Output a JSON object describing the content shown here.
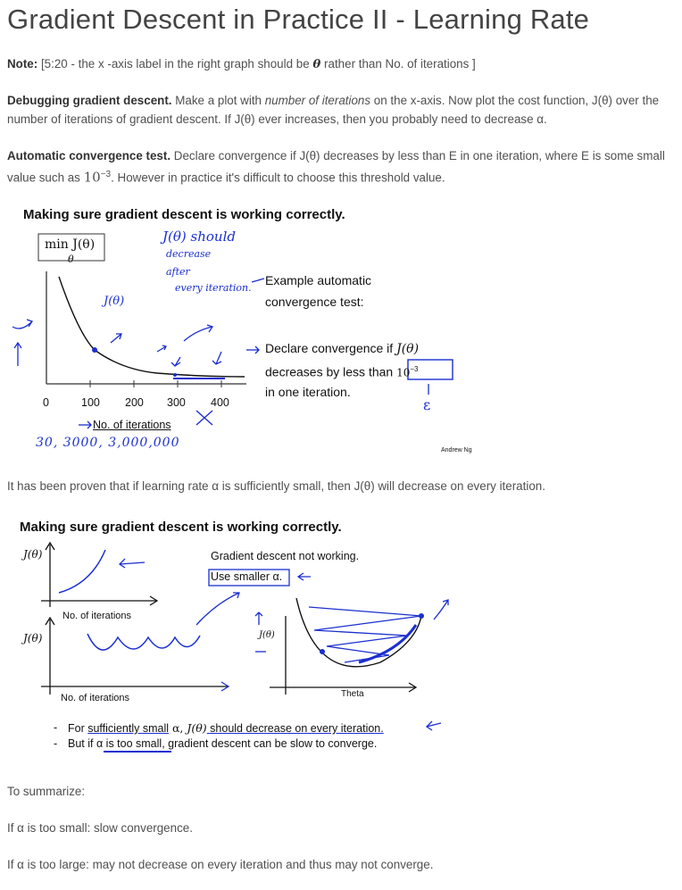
{
  "title": "Gradient Descent in Practice II - Learning Rate",
  "note": {
    "label": "Note:",
    "pre": " [5:20 - the x -axis label in the right graph should be ",
    "theta": "θ",
    "post": " rather than No. of iterations ]"
  },
  "debug": {
    "label": "Debugging gradient descent.",
    "pre": " Make a plot with ",
    "em": "number of iterations",
    "post": " on the x-axis. Now plot the cost function, J(θ) over the number of iterations of gradient descent. If J(θ) ever increases, then you probably need to decrease α."
  },
  "auto": {
    "label": "Automatic convergence test.",
    "pre": " Declare convergence if J(θ) decreases by less than E in one iteration, where E is some small value such as ",
    "base": "10",
    "exp": "−3",
    "post": ". However in practice it's difficult to choose this threshold value."
  },
  "slide1": {
    "heading": "Making sure gradient descent is working correctly.",
    "min_label": "min J(θ)",
    "min_sub": "θ",
    "ticks": [
      "0",
      "100",
      "200",
      "300",
      "400"
    ],
    "xlabel": "No. of iterations",
    "example": [
      "Example automatic",
      "convergence test:"
    ],
    "declare": {
      "pre": "Declare convergence if ",
      "fn": "J(θ)",
      "line2": "decreases by less than ",
      "thresh": "10",
      "thresh_exp": "−3",
      "line3": "in one iteration."
    },
    "hand": {
      "should": "J(θ) should",
      "decrease": "decrease",
      "after": "after",
      "every": "every iteration.",
      "j": "J(θ)",
      "counts": "30,   3000,  3,000,000"
    },
    "credit": "Andrew Ng"
  },
  "proven": "It has been proven that if learning rate α is sufficiently small, then J(θ) will decrease on every iteration.",
  "slide2": {
    "heading": "Making sure gradient descent is working correctly.",
    "jlabel": "J(θ)",
    "xlabel_top": "No. of iterations",
    "xlabel_bottom": "No. of iterations",
    "not_working": "Gradient descent not working.",
    "use_smaller": "Use smaller α.",
    "theta_label": "Theta",
    "bullets": [
      {
        "pre": "For ",
        "u1": "sufficiently small",
        "mid": " α, ",
        "fn": "J(θ)",
        "u2": " should decrease on every iteration."
      },
      {
        "pre": "But if α ",
        "u1": "is too small",
        "post": ", gradient descent can be slow to converge."
      }
    ]
  },
  "summary": {
    "intro": "To summarize:",
    "small": "If α is too small: slow convergence.",
    "large": "If α is too large: may not decrease on every iteration and thus may not converge."
  }
}
